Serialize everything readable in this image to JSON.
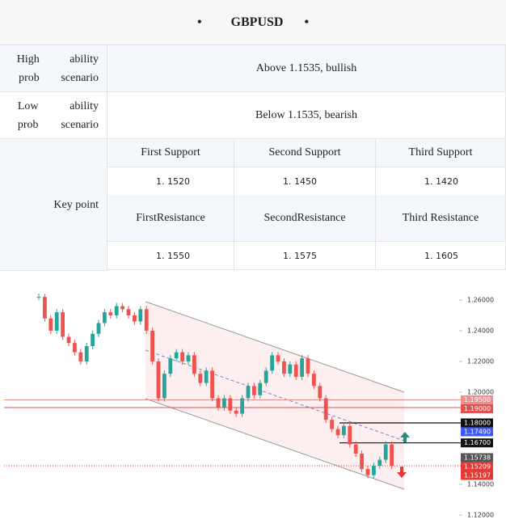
{
  "header": {
    "title": "GBPUSD"
  },
  "scenarios": [
    {
      "label_lines": [
        "High prob",
        "ability scenario"
      ],
      "text": "Above 1.1535, bullish"
    },
    {
      "label_lines": [
        "Low prob",
        "ability scenario"
      ],
      "text": "Below 1.1535, bearish"
    }
  ],
  "key_point": {
    "label": "Key point",
    "supports": [
      {
        "name_lines": [
          "First Support"
        ],
        "value": "1. 1520"
      },
      {
        "name_lines": [
          "Second Support"
        ],
        "value": "1. 1450"
      },
      {
        "name_lines": [
          "Third  Support"
        ],
        "value": "1. 1420"
      }
    ],
    "resistances": [
      {
        "name_lines": [
          "First",
          "Resistance"
        ],
        "value": "1. 1550"
      },
      {
        "name_lines": [
          "Second",
          "Resistance"
        ],
        "value": "1. 1575"
      },
      {
        "name_lines": [
          "Third Resistan",
          "ce"
        ],
        "value": "1. 1605"
      }
    ]
  },
  "chart_data": {
    "type": "candlestick",
    "closes": [
      1.262,
      1.248,
      1.24,
      1.252,
      1.236,
      1.232,
      1.226,
      1.22,
      1.23,
      1.238,
      1.245,
      1.252,
      1.25,
      1.256,
      1.254,
      1.25,
      1.246,
      1.254,
      1.24,
      1.22,
      1.196,
      1.212,
      1.222,
      1.226,
      1.22,
      1.224,
      1.212,
      1.206,
      1.214,
      1.196,
      1.19,
      1.196,
      1.188,
      1.186,
      1.196,
      1.204,
      1.198,
      1.206,
      1.214,
      1.224,
      1.22,
      1.212,
      1.218,
      1.21,
      1.222,
      1.212,
      1.204,
      1.196,
      1.182,
      1.176,
      1.172,
      1.178,
      1.166,
      1.16,
      1.15,
      1.146,
      1.152,
      1.156,
      1.166,
      1.152
    ],
    "up_color": "#26a69a",
    "down_color": "#ef5350",
    "ylim": [
      1.1142,
      1.2705
    ],
    "yticks": [
      {
        "value": 1.26,
        "label": "1.26000"
      },
      {
        "value": 1.24,
        "label": "1.24000"
      },
      {
        "value": 1.22,
        "label": "1.22000"
      },
      {
        "value": 1.2,
        "label": "1.20000"
      },
      {
        "value": 1.14,
        "label": "1.14000"
      },
      {
        "value": 1.12,
        "label": "1.12000"
      }
    ],
    "price_tags": [
      {
        "value": 1.195,
        "label": "1.19500",
        "color": "#eb8f8f",
        "line": "full"
      },
      {
        "value": 1.19,
        "label": "1.19000",
        "color": "#e05252",
        "line": "full"
      },
      {
        "value": 1.18,
        "label": "1.18000",
        "color": "#111111",
        "line": "short"
      },
      {
        "value": 1.1749,
        "label": "1.17490",
        "color": "#3d5afe",
        "line": "none"
      },
      {
        "value": 1.167,
        "label": "1.16700",
        "color": "#111111",
        "line": "short"
      },
      {
        "value": 1.15738,
        "label": "1.15738",
        "color": "#555555",
        "line": "none"
      },
      {
        "value": 1.15209,
        "label": "1.15209",
        "color": "#e53935",
        "line": "dotted"
      },
      {
        "value": 1.15197,
        "label": "1.15197",
        "color": "#e53935",
        "line": "none"
      }
    ]
  }
}
